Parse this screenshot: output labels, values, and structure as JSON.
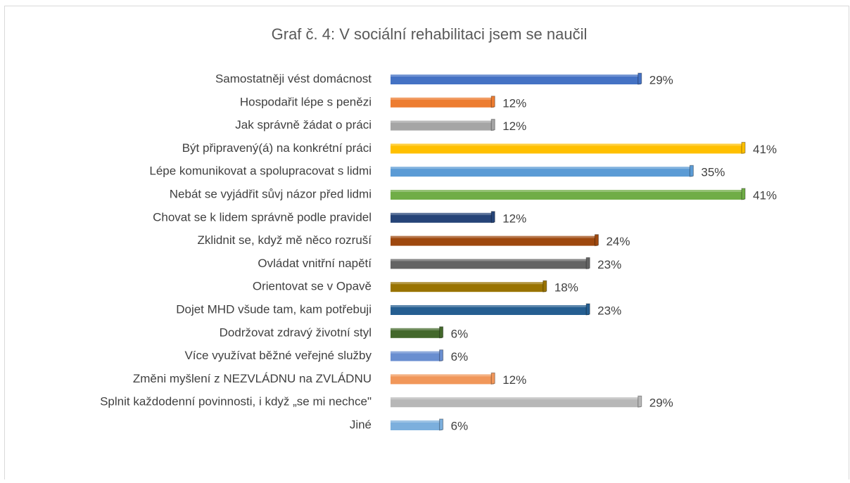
{
  "chart_data": {
    "type": "bar",
    "orientation": "horizontal",
    "title": "Graf č. 4: V sociální rehabilitaci jsem se naučil",
    "categories": [
      "Samostatněji vést domácnost",
      "Hospodařit lépe s penězi",
      "Jak správně žádat o práci",
      "Být připravený(á) na konkrétní práci",
      "Lépe komunikovat a spolupracovat s lidmi",
      "Nebát se vyjádřit sůvj názor před lidmi",
      "Chovat se k lidem správně podle pravidel",
      "Zklidnit se, když mě něco rozruší",
      "Ovládat vnitřní napětí",
      "Orientovat se v Opavě",
      "Dojet MHD všude tam, kam potřebuji",
      "Dodržovat zdravý životní styl",
      "Více využívat běžné veřejné služby",
      "Změni myšlení z NEZVLÁDNU na ZVLÁDNU",
      "Splnit každodenní povinnosti, i když „se mi nechce\"",
      "Jiné"
    ],
    "values": [
      29,
      12,
      12,
      41,
      35,
      41,
      12,
      24,
      23,
      18,
      23,
      6,
      6,
      12,
      29,
      6
    ],
    "value_labels": [
      "29%",
      "12%",
      "12%",
      "41%",
      "35%",
      "41%",
      "12%",
      "24%",
      "23%",
      "18%",
      "23%",
      "6%",
      "6%",
      "12%",
      "29%",
      "6%"
    ],
    "colors": [
      "#4472c4",
      "#ed7d31",
      "#a5a5a5",
      "#ffc000",
      "#5b9bd5",
      "#70ad47",
      "#264478",
      "#9e480e",
      "#636363",
      "#997300",
      "#255e91",
      "#43682b",
      "#698ed0",
      "#f1975a",
      "#b7b7b7",
      "#7cafdd"
    ]
  }
}
